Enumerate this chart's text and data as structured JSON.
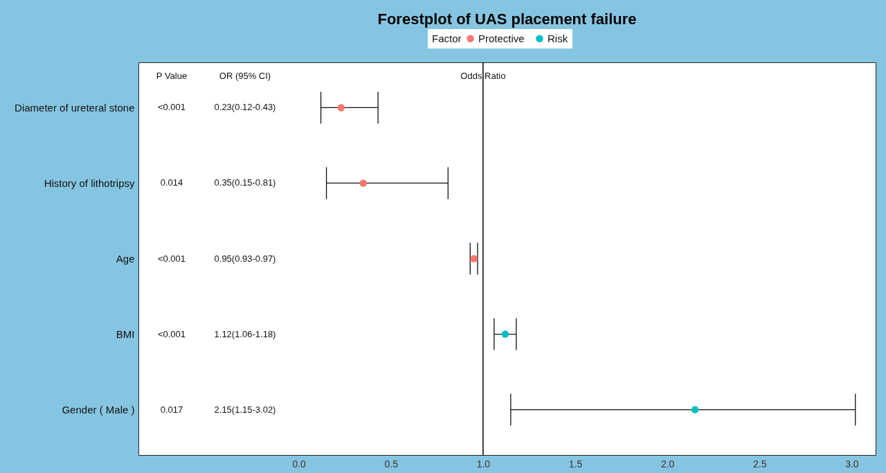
{
  "chart_data": {
    "type": "scatter",
    "orientation": "horizontal",
    "title": "Forestplot of UAS placement failure",
    "legend_title": "Factor",
    "legend": "top",
    "marker": "circle",
    "grid": false,
    "categories": [
      "Diameter of ureteral stone",
      "History of lithotripsy",
      "Age",
      "BMI",
      "Gender ( Male )"
    ],
    "series": [
      {
        "name": "Protective",
        "color": "#f8766d",
        "values": [
          0.23,
          0.35,
          0.95,
          null,
          null
        ],
        "errors": [
          [
            0.12,
            0.43
          ],
          [
            0.15,
            0.81
          ],
          [
            0.93,
            0.97
          ],
          null,
          null
        ]
      },
      {
        "name": "Risk",
        "color": "#00bfc4",
        "values": [
          null,
          null,
          null,
          1.12,
          2.15
        ],
        "errors": [
          null,
          null,
          null,
          [
            1.06,
            1.18
          ],
          [
            1.15,
            3.02
          ]
        ]
      }
    ],
    "xlim": [
      -0.87,
      3.13
    ],
    "xticks": [
      {
        "value": 0,
        "label": "0.0"
      },
      0.5,
      {
        "value": 1,
        "label": "1.0"
      },
      1.5,
      {
        "value": 2,
        "label": "2.0"
      },
      2.5,
      {
        "value": 3,
        "label": "3.0"
      }
    ],
    "ref_lines": [
      {
        "axis": "x",
        "value": 1,
        "label": "Odds Ratio"
      }
    ],
    "annotations": [
      "P Value",
      "OR (95% CI)",
      "<0.001",
      "0.014",
      "<0.001",
      "<0.001",
      "0.017",
      "0.23(0.12-0.43)",
      "0.35(0.15-0.81)",
      "0.95(0.93-0.97)",
      "1.12(1.06-1.18)",
      "2.15(1.15-3.02)"
    ]
  }
}
